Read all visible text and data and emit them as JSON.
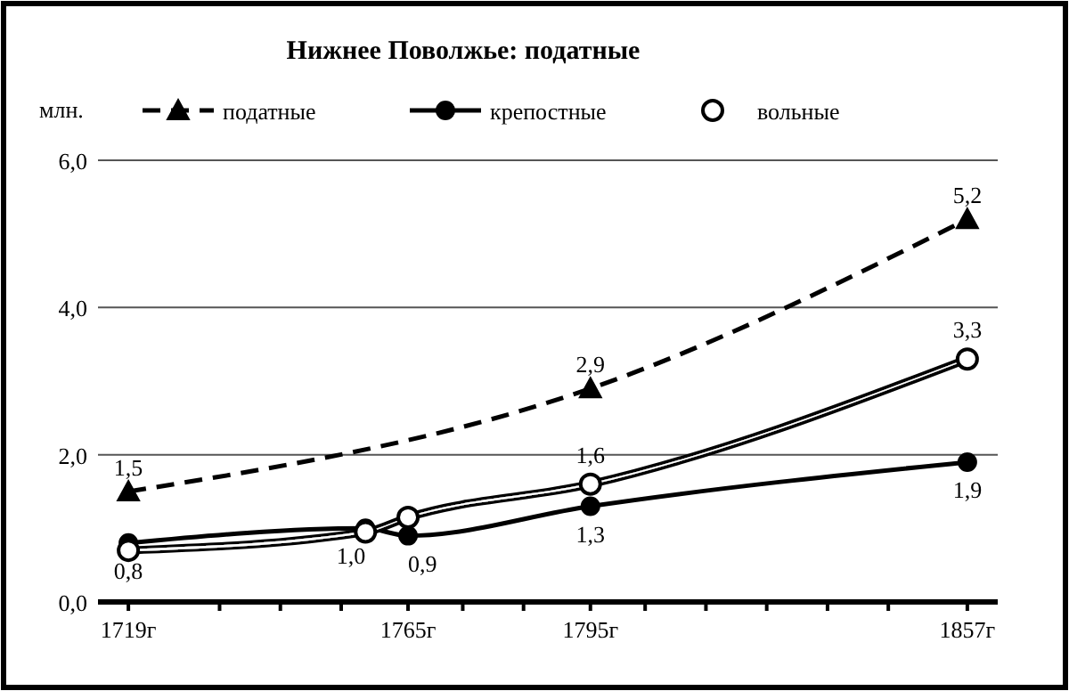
{
  "chart_data": {
    "type": "line",
    "title": "Нижнее Поволжье: податные",
    "ylabel": "млн.",
    "xlim": [
      1714,
      1862
    ],
    "xticks": [
      {
        "value": 1719,
        "label": "1719г"
      },
      {
        "value": 1734,
        "label": null
      },
      {
        "value": 1744,
        "label": null
      },
      {
        "value": 1754,
        "label": null
      },
      {
        "value": 1765,
        "label": "1765г"
      },
      {
        "value": 1774,
        "label": null
      },
      {
        "value": 1784,
        "label": null
      },
      {
        "value": 1795,
        "label": "1795г"
      },
      {
        "value": 1804,
        "label": null
      },
      {
        "value": 1814,
        "label": null
      },
      {
        "value": 1824,
        "label": null
      },
      {
        "value": 1834,
        "label": null
      },
      {
        "value": 1844,
        "label": null
      },
      {
        "value": 1857,
        "label": "1857г"
      }
    ],
    "ylim": [
      0,
      6
    ],
    "yticks": [
      {
        "value": 0,
        "label": "0,0"
      },
      {
        "value": 2,
        "label": "2,0"
      },
      {
        "value": 4,
        "label": "4,0"
      },
      {
        "value": 6,
        "label": "6,0"
      }
    ],
    "grid": "y",
    "legend": "top",
    "series": [
      {
        "name": "податные",
        "color": "#000000",
        "line_style": "dashed",
        "marker": "triangle",
        "x": [
          1719,
          1795,
          1857
        ],
        "values": [
          1.5,
          2.9,
          5.2
        ],
        "value_labels": [
          "1,5",
          "2,9",
          "5,2"
        ]
      },
      {
        "name": "крепостные",
        "color": "#000000",
        "line_style": "solid",
        "marker": "circle",
        "x": [
          1719,
          1758,
          1765,
          1795,
          1857
        ],
        "values": [
          0.8,
          1.0,
          0.9,
          1.3,
          1.9
        ],
        "value_labels": [
          "0,8",
          "1,0",
          "0,9",
          "1,3",
          "1,9"
        ]
      },
      {
        "name": "вольные",
        "color": "#000000",
        "line_style": "solid",
        "marker": "circle",
        "x": [
          1719,
          1758,
          1765,
          1795,
          1857
        ],
        "values": [
          0.7,
          0.95,
          1.15,
          1.6,
          3.3
        ],
        "value_labels": [
          null,
          null,
          null,
          "1,6",
          "3,3"
        ]
      }
    ]
  }
}
